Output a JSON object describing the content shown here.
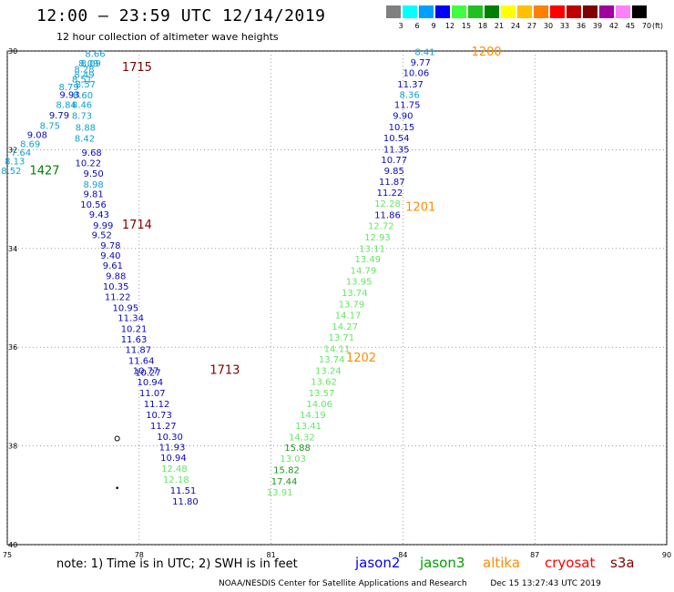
{
  "header": {
    "title": "12:00 – 23:59 UTC 12/14/2019",
    "subtitle": "12 hour collection of altimeter wave heights"
  },
  "color_scale": {
    "labels": [
      "3",
      "6",
      "9",
      "12",
      "15",
      "18",
      "21",
      "24",
      "27",
      "30",
      "33",
      "36",
      "39",
      "42",
      "45",
      "70"
    ],
    "colors": [
      "#808080",
      "#00ffff",
      "#00a0ff",
      "#0000ff",
      "#40ff40",
      "#20c020",
      "#008000",
      "#ffff00",
      "#ffc000",
      "#ff8000",
      "#ff0000",
      "#c00000",
      "#800000",
      "#a000a0",
      "#ff80ff",
      "#000000"
    ],
    "unit": "(ft)"
  },
  "axes": {
    "x_ticks": [
      "75",
      "78",
      "81",
      "84",
      "87",
      "90"
    ],
    "x_values": [
      75,
      78,
      81,
      84,
      87,
      90
    ],
    "y_ticks": [
      "30",
      "32",
      "34",
      "36",
      "38",
      "40"
    ],
    "y_values": [
      30,
      32,
      34,
      36,
      38,
      40
    ]
  },
  "observations": [
    {
      "lon": 77.0,
      "lat": 30.05,
      "value": "8.66",
      "color": "#0fa0cf"
    },
    {
      "lon": 76.85,
      "lat": 30.24,
      "value": "8.09",
      "color": "#0fa0cf"
    },
    {
      "lon": 76.9,
      "lat": 30.24,
      "value": "8.09",
      "color": "#0fa0cf"
    },
    {
      "lon": 76.75,
      "lat": 30.36,
      "value": "8.28",
      "color": "#0fa0cf"
    },
    {
      "lon": 76.75,
      "lat": 30.47,
      "value": "8.49",
      "color": "#0fa0cf"
    },
    {
      "lon": 76.7,
      "lat": 30.56,
      "value": "8.51",
      "color": "#0fa0cf"
    },
    {
      "lon": 76.78,
      "lat": 30.66,
      "value": "8.57",
      "color": "#0fa0cf"
    },
    {
      "lon": 76.4,
      "lat": 30.72,
      "value": "8.79",
      "color": "#0fa0cf"
    },
    {
      "lon": 76.42,
      "lat": 30.88,
      "value": "9.93",
      "color": "#0a0ab4"
    },
    {
      "lon": 76.72,
      "lat": 30.89,
      "value": "8.60",
      "color": "#0fa0cf"
    },
    {
      "lon": 76.34,
      "lat": 31.08,
      "value": "8.84",
      "color": "#0fa0cf"
    },
    {
      "lon": 76.7,
      "lat": 31.08,
      "value": "8.46",
      "color": "#0fa0cf"
    },
    {
      "lon": 76.18,
      "lat": 31.29,
      "value": "9.79",
      "color": "#0a0ab4"
    },
    {
      "lon": 76.7,
      "lat": 31.3,
      "value": "8.73",
      "color": "#0fa0cf"
    },
    {
      "lon": 75.97,
      "lat": 31.5,
      "value": "8.75",
      "color": "#0fa0cf"
    },
    {
      "lon": 76.78,
      "lat": 31.54,
      "value": "8.88",
      "color": "#0fa0cf"
    },
    {
      "lon": 75.68,
      "lat": 31.69,
      "value": "9.08",
      "color": "#0a0ab4"
    },
    {
      "lon": 76.76,
      "lat": 31.76,
      "value": "8.42",
      "color": "#0fa0cf"
    },
    {
      "lon": 75.52,
      "lat": 31.87,
      "value": "8.69",
      "color": "#0fa0cf"
    },
    {
      "lon": 75.31,
      "lat": 32.05,
      "value": "7.64",
      "color": "#0fa0cf"
    },
    {
      "lon": 76.92,
      "lat": 32.05,
      "value": "9.68",
      "color": "#0a0ab4"
    },
    {
      "lon": 75.17,
      "lat": 32.22,
      "value": "8.13",
      "color": "#0fa0cf"
    },
    {
      "lon": 76.84,
      "lat": 32.26,
      "value": "10.22",
      "color": "#0a0ab4"
    },
    {
      "lon": 75.09,
      "lat": 32.42,
      "value": "8.52",
      "color": "#0fa0cf"
    },
    {
      "lon": 76.96,
      "lat": 32.47,
      "value": "9.50",
      "color": "#0a0ab4"
    },
    {
      "lon": 76.96,
      "lat": 32.69,
      "value": "8.98",
      "color": "#0fa0cf"
    },
    {
      "lon": 76.96,
      "lat": 32.89,
      "value": "9.81",
      "color": "#0a0ab4"
    },
    {
      "lon": 76.96,
      "lat": 33.1,
      "value": "10.56",
      "color": "#0a0ab4"
    },
    {
      "lon": 77.09,
      "lat": 33.3,
      "value": "9.43",
      "color": "#0a0ab4"
    },
    {
      "lon": 77.18,
      "lat": 33.52,
      "value": "9.99",
      "color": "#0a0ab4"
    },
    {
      "lon": 77.15,
      "lat": 33.72,
      "value": "9.52",
      "color": "#0a0ab4"
    },
    {
      "lon": 77.35,
      "lat": 33.93,
      "value": "9.78",
      "color": "#0a0ab4"
    },
    {
      "lon": 77.35,
      "lat": 34.13,
      "value": "9.40",
      "color": "#0a0ab4"
    },
    {
      "lon": 77.4,
      "lat": 34.34,
      "value": "9.61",
      "color": "#0a0ab4"
    },
    {
      "lon": 77.47,
      "lat": 34.55,
      "value": "9.88",
      "color": "#0a0ab4"
    },
    {
      "lon": 77.47,
      "lat": 34.76,
      "value": "10.35",
      "color": "#0a0ab4"
    },
    {
      "lon": 77.51,
      "lat": 34.97,
      "value": "11.22",
      "color": "#0a0ab4"
    },
    {
      "lon": 77.69,
      "lat": 35.19,
      "value": "10.95",
      "color": "#0a0ab4"
    },
    {
      "lon": 77.81,
      "lat": 35.4,
      "value": "11.34",
      "color": "#0a0ab4"
    },
    {
      "lon": 77.88,
      "lat": 35.62,
      "value": "10.21",
      "color": "#0a0ab4"
    },
    {
      "lon": 77.88,
      "lat": 35.83,
      "value": "11.63",
      "color": "#0a0ab4"
    },
    {
      "lon": 77.98,
      "lat": 36.04,
      "value": "11.87",
      "color": "#0a0ab4"
    },
    {
      "lon": 78.05,
      "lat": 36.26,
      "value": "11.64",
      "color": "#0a0ab4"
    },
    {
      "lon": 78.15,
      "lat": 36.47,
      "value": "10.77",
      "color": "#0a0ab4"
    },
    {
      "lon": 78.2,
      "lat": 36.5,
      "value": "10.27",
      "color": "#0a0ab4"
    },
    {
      "lon": 78.25,
      "lat": 36.7,
      "value": "10.94",
      "color": "#0a0ab4"
    },
    {
      "lon": 78.3,
      "lat": 36.92,
      "value": "11.07",
      "color": "#0a0ab4"
    },
    {
      "lon": 78.4,
      "lat": 37.14,
      "value": "11.12",
      "color": "#0a0ab4"
    },
    {
      "lon": 78.45,
      "lat": 37.36,
      "value": "10.73",
      "color": "#0a0ab4"
    },
    {
      "lon": 78.55,
      "lat": 37.58,
      "value": "11.27",
      "color": "#0a0ab4"
    },
    {
      "lon": 78.7,
      "lat": 37.8,
      "value": "10.30",
      "color": "#0a0ab4"
    },
    {
      "lon": 78.75,
      "lat": 38.02,
      "value": "11.93",
      "color": "#0a0ab4"
    },
    {
      "lon": 78.78,
      "lat": 38.23,
      "value": "10.94",
      "color": "#0a0ab4"
    },
    {
      "lon": 78.8,
      "lat": 38.45,
      "value": "12.48",
      "color": "#62e862"
    },
    {
      "lon": 78.84,
      "lat": 38.67,
      "value": "12.18",
      "color": "#62e862"
    },
    {
      "lon": 79.0,
      "lat": 38.89,
      "value": "11.51",
      "color": "#0a0ab4"
    },
    {
      "lon": 79.05,
      "lat": 39.11,
      "value": "11.80",
      "color": "#0a0ab4"
    },
    {
      "lon": 84.5,
      "lat": 30.01,
      "value": "8.41",
      "color": "#0fa0cf"
    },
    {
      "lon": 84.4,
      "lat": 30.22,
      "value": "9.77",
      "color": "#0a0ab4"
    },
    {
      "lon": 84.3,
      "lat": 30.43,
      "value": "10.06",
      "color": "#0a0ab4"
    },
    {
      "lon": 84.17,
      "lat": 30.66,
      "value": "11.37",
      "color": "#0a0ab4"
    },
    {
      "lon": 84.15,
      "lat": 30.88,
      "value": "8.36",
      "color": "#0fa0cf"
    },
    {
      "lon": 84.1,
      "lat": 31.08,
      "value": "11.75",
      "color": "#0a0ab4"
    },
    {
      "lon": 84.0,
      "lat": 31.3,
      "value": "9.90",
      "color": "#0a0ab4"
    },
    {
      "lon": 83.97,
      "lat": 31.53,
      "value": "10.15",
      "color": "#0a0ab4"
    },
    {
      "lon": 83.85,
      "lat": 31.75,
      "value": "10.54",
      "color": "#0a0ab4"
    },
    {
      "lon": 83.85,
      "lat": 31.98,
      "value": "11.35",
      "color": "#0a0ab4"
    },
    {
      "lon": 83.8,
      "lat": 32.2,
      "value": "10.77",
      "color": "#0a0ab4"
    },
    {
      "lon": 83.8,
      "lat": 32.42,
      "value": "9.85",
      "color": "#0a0ab4"
    },
    {
      "lon": 83.75,
      "lat": 32.64,
      "value": "11.87",
      "color": "#0a0ab4"
    },
    {
      "lon": 83.7,
      "lat": 32.86,
      "value": "11.22",
      "color": "#0a0ab4"
    },
    {
      "lon": 83.65,
      "lat": 33.08,
      "value": "12.28",
      "color": "#62e862"
    },
    {
      "lon": 83.65,
      "lat": 33.31,
      "value": "11.86",
      "color": "#0a0ab4"
    },
    {
      "lon": 83.5,
      "lat": 33.53,
      "value": "12.72",
      "color": "#62e862"
    },
    {
      "lon": 83.42,
      "lat": 33.76,
      "value": "12.93",
      "color": "#62e862"
    },
    {
      "lon": 83.3,
      "lat": 33.99,
      "value": "13.11",
      "color": "#62e862"
    },
    {
      "lon": 83.2,
      "lat": 34.21,
      "value": "13.49",
      "color": "#62e862"
    },
    {
      "lon": 83.1,
      "lat": 34.44,
      "value": "14.79",
      "color": "#62e862"
    },
    {
      "lon": 83.0,
      "lat": 34.66,
      "value": "13.95",
      "color": "#62e862"
    },
    {
      "lon": 82.9,
      "lat": 34.89,
      "value": "13.74",
      "color": "#62e862"
    },
    {
      "lon": 82.83,
      "lat": 35.12,
      "value": "13.79",
      "color": "#62e862"
    },
    {
      "lon": 82.75,
      "lat": 35.34,
      "value": "14.17",
      "color": "#62e862"
    },
    {
      "lon": 82.68,
      "lat": 35.57,
      "value": "14.27",
      "color": "#62e862"
    },
    {
      "lon": 82.6,
      "lat": 35.79,
      "value": "13.71",
      "color": "#62e862"
    },
    {
      "lon": 82.5,
      "lat": 36.02,
      "value": "14.11",
      "color": "#62e862"
    },
    {
      "lon": 82.38,
      "lat": 36.24,
      "value": "13.74",
      "color": "#62e862"
    },
    {
      "lon": 82.3,
      "lat": 36.47,
      "value": "13.24",
      "color": "#62e862"
    },
    {
      "lon": 82.2,
      "lat": 36.69,
      "value": "13.62",
      "color": "#62e862"
    },
    {
      "lon": 82.15,
      "lat": 36.92,
      "value": "13.57",
      "color": "#62e862"
    },
    {
      "lon": 82.1,
      "lat": 37.14,
      "value": "14.06",
      "color": "#62e862"
    },
    {
      "lon": 81.95,
      "lat": 37.36,
      "value": "14.19",
      "color": "#62e862"
    },
    {
      "lon": 81.85,
      "lat": 37.58,
      "value": "13.41",
      "color": "#62e862"
    },
    {
      "lon": 81.7,
      "lat": 37.81,
      "value": "14.32",
      "color": "#62e862"
    },
    {
      "lon": 81.6,
      "lat": 38.03,
      "value": "15.88",
      "color": "#1e961e"
    },
    {
      "lon": 81.5,
      "lat": 38.25,
      "value": "13.03",
      "color": "#62e862"
    },
    {
      "lon": 81.35,
      "lat": 38.48,
      "value": "15.82",
      "color": "#1e961e"
    },
    {
      "lon": 81.3,
      "lat": 38.71,
      "value": "17.44",
      "color": "#1e961e"
    },
    {
      "lon": 81.2,
      "lat": 38.93,
      "value": "13.91",
      "color": "#62e862"
    }
  ],
  "time_labels": [
    {
      "lon": 77.95,
      "lat": 30.31,
      "value": "1715",
      "color": "#800000"
    },
    {
      "lon": 75.85,
      "lat": 32.41,
      "value": "1427",
      "color": "#008000"
    },
    {
      "lon": 77.95,
      "lat": 33.51,
      "value": "1714",
      "color": "#800000"
    },
    {
      "lon": 79.95,
      "lat": 36.45,
      "value": "1713",
      "color": "#800000"
    },
    {
      "lon": 85.9,
      "lat": 30.0,
      "value": "1200",
      "color": "#ff8c00"
    },
    {
      "lon": 84.4,
      "lat": 33.15,
      "value": "1201",
      "color": "#ff8c00"
    },
    {
      "lon": 83.05,
      "lat": 36.2,
      "value": "1202",
      "color": "#ff8c00"
    }
  ],
  "small_marks": [
    {
      "lon": 77.5,
      "lat": 37.85,
      "shape": "circle"
    },
    {
      "lon": 77.5,
      "lat": 38.85,
      "shape": "dot"
    }
  ],
  "footer": {
    "note": "note: 1) Time is in UTC; 2) SWH is in feet",
    "legend": [
      {
        "name": "jason2",
        "color": "#0000ff"
      },
      {
        "name": "jason3",
        "color": "#00a000"
      },
      {
        "name": "altika",
        "color": "#ff8c00"
      },
      {
        "name": "cryosat",
        "color": "#ff0000"
      },
      {
        "name": "s3a",
        "color": "#800000"
      }
    ],
    "credit_left": "NOAA/NESDIS Center for Satellite Applications and Research",
    "credit_right": "Dec 15 13:27:43 UTC 2019"
  }
}
